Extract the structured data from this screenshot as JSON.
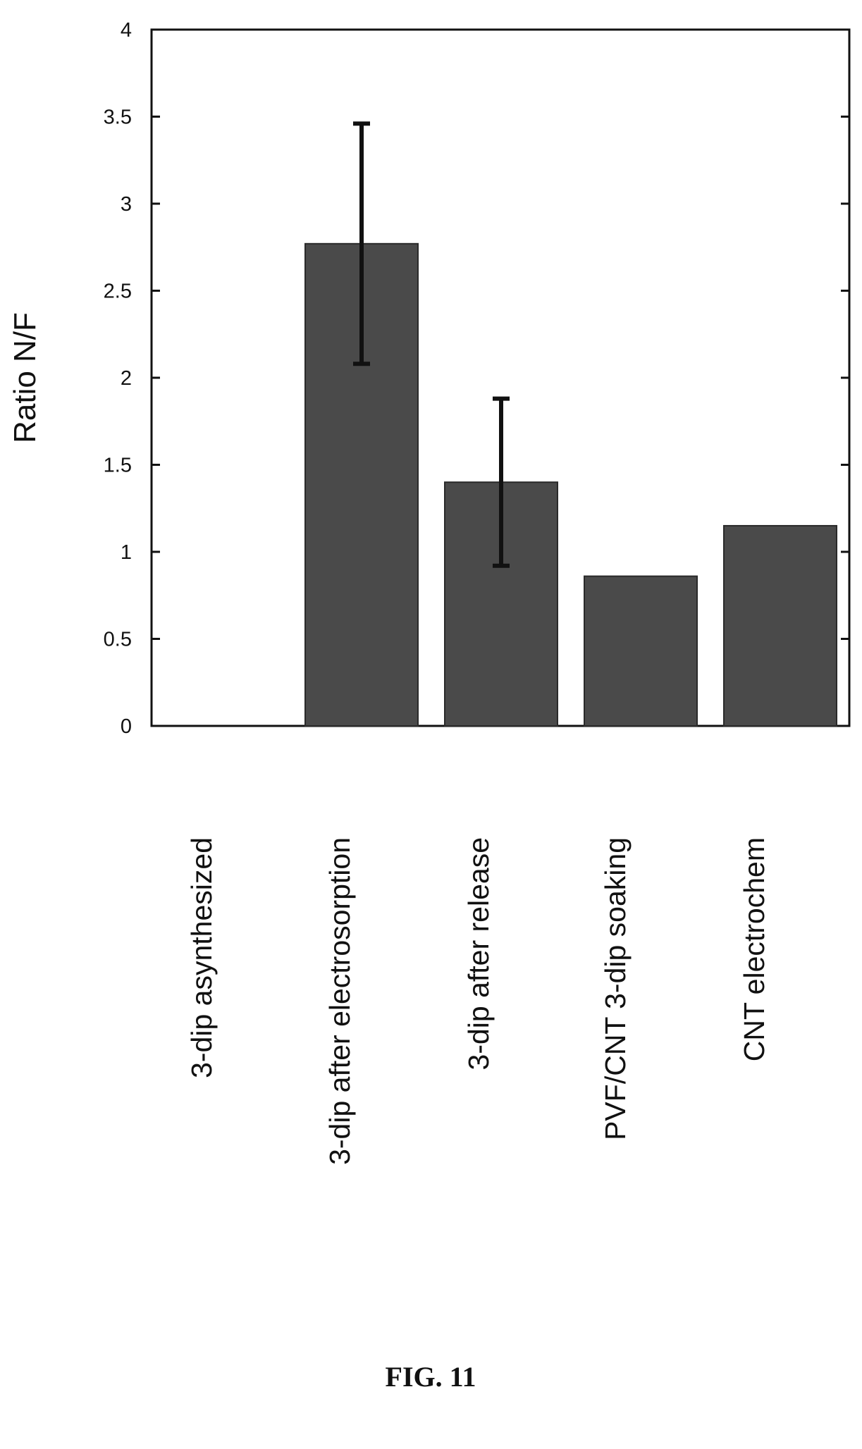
{
  "chart_data": {
    "type": "bar",
    "categories": [
      "3-dip asynthesized",
      "3-dip after electrosorption",
      "3-dip after release",
      "PVF/CNT 3-dip soaking",
      "CNT electrochem"
    ],
    "values": [
      0,
      2.77,
      1.4,
      0.86,
      1.15
    ],
    "error_bars": [
      null,
      [
        2.08,
        3.46
      ],
      [
        0.92,
        1.88
      ],
      null,
      null
    ],
    "title": "",
    "xlabel": "",
    "ylabel": "Ratio N/F",
    "ylim": [
      0,
      4
    ],
    "yticks": [
      "0",
      "0.5",
      "1",
      "1.5",
      "2",
      "2.5",
      "3",
      "3.5",
      "4"
    ],
    "grid": false,
    "bar_color": "#4a4a4a"
  },
  "caption": "FIG. 11"
}
